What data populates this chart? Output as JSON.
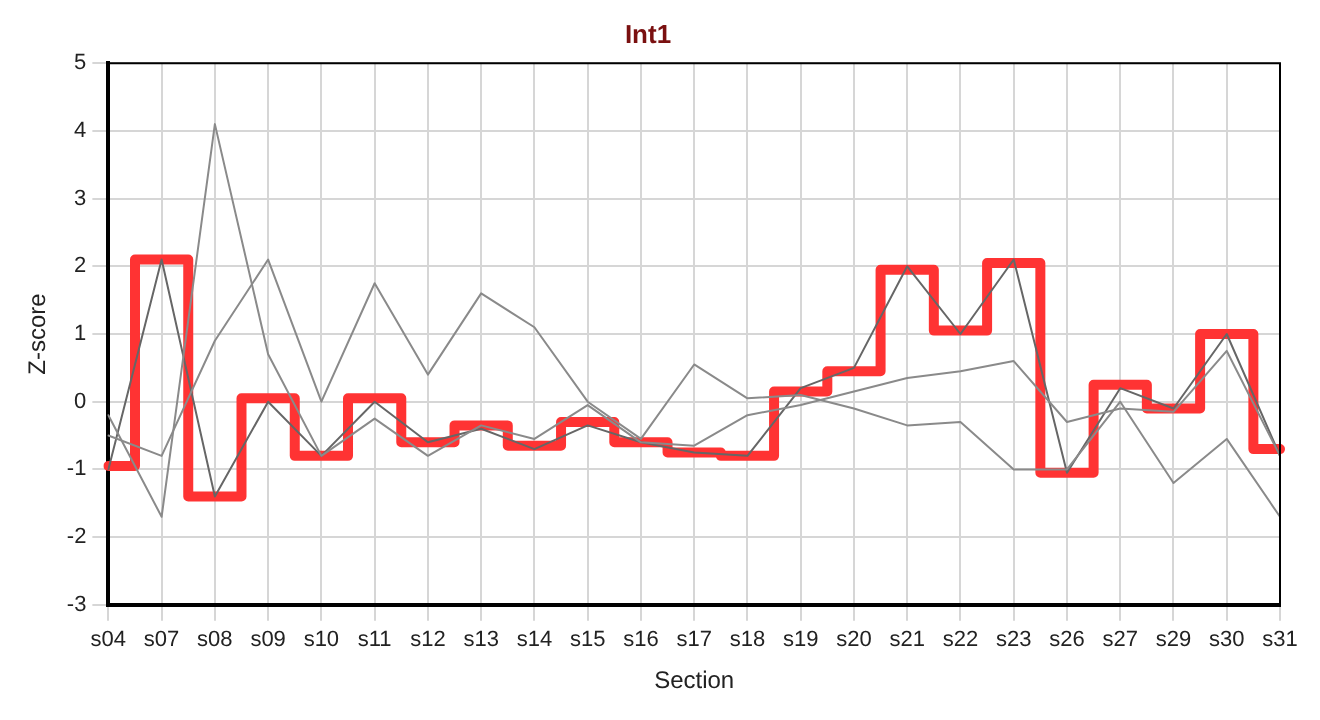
{
  "chart_data": {
    "type": "line",
    "title": "Int1",
    "xlabel": "Section",
    "ylabel": "Z-score",
    "categories": [
      "s04",
      "s07",
      "s08",
      "s09",
      "s10",
      "s11",
      "s12",
      "s13",
      "s14",
      "s15",
      "s16",
      "s17",
      "s18",
      "s19",
      "s20",
      "s21",
      "s22",
      "s23",
      "s26",
      "s27",
      "s29",
      "s30",
      "s31"
    ],
    "ylim": [
      -3,
      5
    ],
    "yticks": [
      -3,
      -2,
      -1,
      0,
      1,
      2,
      3,
      4,
      5
    ],
    "grid": true,
    "legend": false,
    "marker": "none",
    "series": [
      {
        "type": "line",
        "color": "#8a8a8a",
        "values": [
          -0.2,
          -1.7,
          4.1,
          0.7,
          -0.8,
          -0.25,
          -0.8,
          -0.35,
          -0.55,
          -0.05,
          -0.6,
          -0.65,
          -0.2,
          -0.05,
          0.15,
          0.35,
          0.45,
          0.6,
          -0.3,
          -0.1,
          -0.15,
          0.75,
          -0.8
        ]
      },
      {
        "type": "line",
        "color": "#8a8a8a",
        "values": [
          -0.5,
          -0.8,
          0.9,
          2.1,
          0,
          1.75,
          0.4,
          1.6,
          1.1,
          0,
          -0.55,
          0.55,
          0.05,
          0.1,
          -0.1,
          -0.35,
          -0.3,
          -1.0,
          -1.0,
          0,
          -1.2,
          -0.55,
          -1.7
        ]
      },
      {
        "type": "line",
        "color": "#666666",
        "values": [
          -1.0,
          2.1,
          -1.4,
          0,
          -0.8,
          0,
          -0.6,
          -0.4,
          -0.7,
          -0.35,
          -0.6,
          -0.75,
          -0.8,
          0.2,
          0.5,
          2.0,
          1.0,
          2.1,
          -1.05,
          0.2,
          -0.1,
          1.0,
          -0.8
        ]
      },
      {
        "type": "step",
        "color": "#ff3333",
        "values": [
          -0.95,
          2.1,
          -1.4,
          0.05,
          -0.8,
          0.05,
          -0.6,
          -0.35,
          -0.65,
          -0.3,
          -0.6,
          -0.75,
          -0.8,
          0.15,
          0.45,
          1.95,
          1.05,
          2.05,
          -1.05,
          0.25,
          -0.1,
          1.0,
          -0.7
        ]
      }
    ]
  }
}
